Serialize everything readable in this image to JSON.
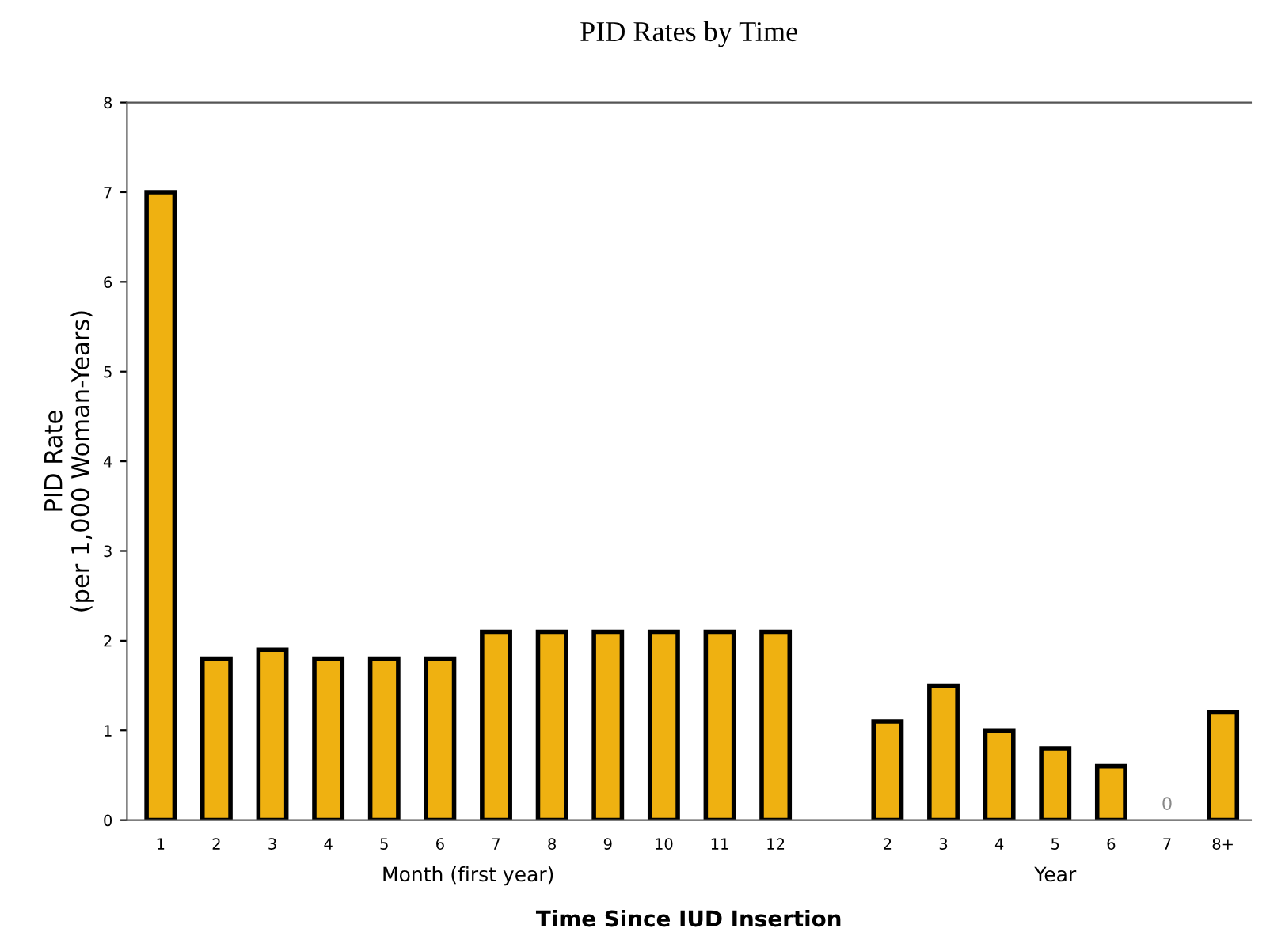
{
  "chart_data": {
    "type": "bar",
    "title": "PID Rates by Time",
    "xlabel": "Time Since IUD Insertion",
    "ylabel": "PID Rate\n(per 1,000 Woman-Years)",
    "categories": [
      "1",
      "2",
      "3",
      "4",
      "5",
      "6",
      "7",
      "8",
      "9",
      "10",
      "11",
      "12",
      null,
      "2",
      "3",
      "4",
      "5",
      "6",
      "7",
      "8+"
    ],
    "values": [
      7,
      1.8,
      1.9,
      1.8,
      1.8,
      1.8,
      2.1,
      2.1,
      2.1,
      2.1,
      2.1,
      2.1,
      null,
      1.1,
      1.5,
      1.0,
      0.8,
      0.6,
      0,
      1.2
    ],
    "value_labels": [
      null,
      null,
      null,
      null,
      null,
      null,
      null,
      null,
      null,
      null,
      null,
      null,
      null,
      null,
      null,
      null,
      null,
      null,
      "0",
      null
    ],
    "color": "#efb111",
    "ylim": [
      0,
      8
    ],
    "yticks": [
      0,
      1,
      2,
      3,
      4,
      5,
      6,
      7,
      8
    ],
    "grid": false,
    "legend": false,
    "annotations": [
      "Month (first year)",
      "Year"
    ]
  }
}
